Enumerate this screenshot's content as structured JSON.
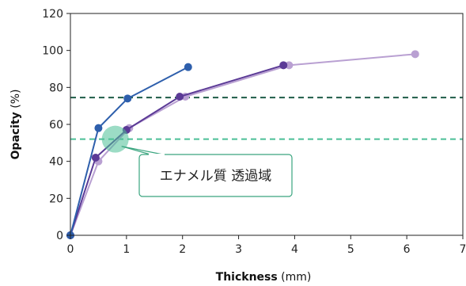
{
  "chart_data": {
    "type": "line",
    "title": "",
    "xlabel_bold": "Thickness",
    "xlabel_unit": " (mm)",
    "ylabel_bold": "Opacity",
    "ylabel_unit": " (%)",
    "xlim": [
      0,
      7
    ],
    "ylim": [
      0,
      120
    ],
    "xticks": [
      0,
      1,
      2,
      3,
      4,
      5,
      6,
      7
    ],
    "yticks": [
      0,
      20,
      40,
      60,
      80,
      100,
      120
    ],
    "grid": false,
    "series": [
      {
        "color": "#2e5fac",
        "points": [
          [
            0,
            0
          ],
          [
            0.5,
            58
          ],
          [
            1.02,
            74
          ],
          [
            2.1,
            91
          ]
        ]
      },
      {
        "color": "#5b3a96",
        "points": [
          [
            0,
            0
          ],
          [
            0.45,
            42
          ],
          [
            1.0,
            57
          ],
          [
            1.95,
            75
          ],
          [
            3.8,
            92
          ]
        ]
      },
      {
        "color": "#b9a0d2",
        "points": [
          [
            0,
            0
          ],
          [
            0.5,
            40
          ],
          [
            1.05,
            58
          ],
          [
            2.05,
            75
          ],
          [
            3.9,
            92
          ],
          [
            6.15,
            98
          ]
        ]
      }
    ],
    "reference_lines": [
      {
        "y": 74.5,
        "color": "#1f5c48"
      },
      {
        "y": 52,
        "color": "#4bbf96"
      }
    ],
    "annotation": {
      "text": "エナメル質 透過域",
      "target": [
        0.8,
        52
      ]
    }
  }
}
